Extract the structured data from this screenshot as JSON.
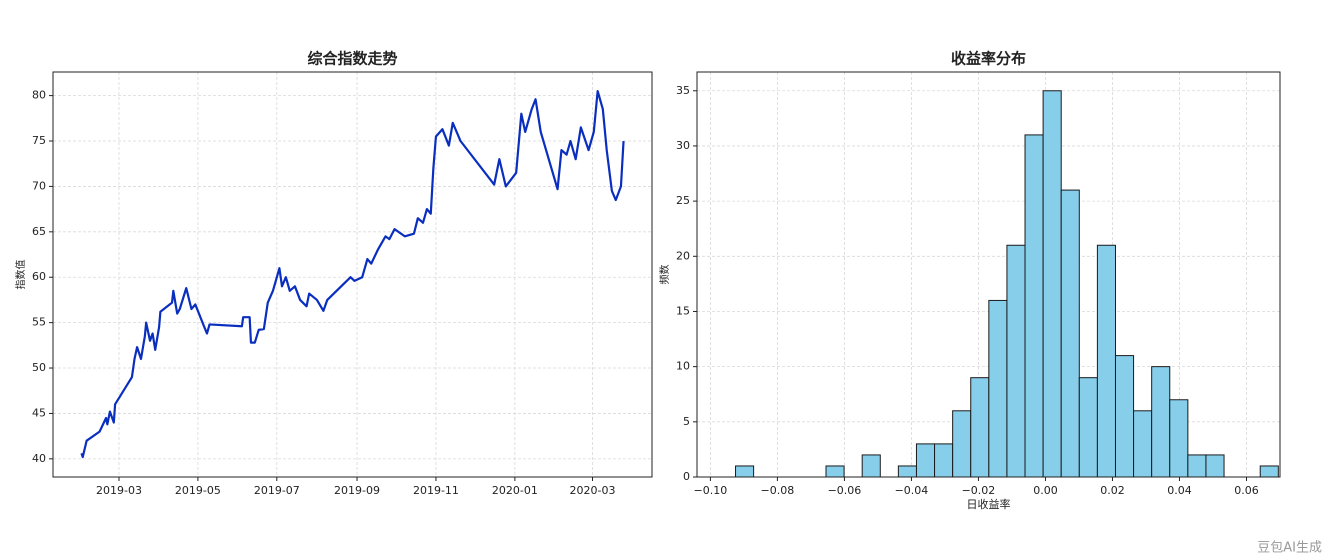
{
  "chart_data": [
    {
      "type": "line",
      "title": "综合指数走势",
      "ylabel": "指数值",
      "color": "#0a2fbf",
      "grid": true,
      "xlim": [
        "2019-01-09",
        "2020-04-16"
      ],
      "ylim": [
        38.0,
        82.6
      ],
      "xticks": [
        {
          "value": "2019-03-01",
          "label": "2019-03"
        },
        {
          "value": "2019-05-01",
          "label": "2019-05"
        },
        {
          "value": "2019-07-01",
          "label": "2019-07"
        },
        {
          "value": "2019-09-01",
          "label": "2019-09"
        },
        {
          "value": "2019-11-01",
          "label": "2019-11"
        },
        {
          "value": "2020-01-01",
          "label": "2020-01"
        },
        {
          "value": "2020-03-01",
          "label": "2020-03"
        }
      ],
      "yticks": [
        40,
        45,
        50,
        55,
        60,
        65,
        70,
        75,
        80
      ],
      "x": [
        "2019-01-31",
        "2019-02-01",
        "2019-02-04",
        "2019-02-14",
        "2019-02-19",
        "2019-02-20",
        "2019-02-22",
        "2019-02-25",
        "2019-02-26",
        "2019-03-11",
        "2019-03-13",
        "2019-03-15",
        "2019-03-18",
        "2019-03-21",
        "2019-03-22",
        "2019-03-25",
        "2019-03-27",
        "2019-03-29",
        "2019-04-01",
        "2019-04-02",
        "2019-04-11",
        "2019-04-12",
        "2019-04-15",
        "2019-04-17",
        "2019-04-22",
        "2019-04-26",
        "2019-04-29",
        "2019-05-06",
        "2019-05-08",
        "2019-05-10",
        "2019-06-04",
        "2019-06-05",
        "2019-06-10",
        "2019-06-11",
        "2019-06-14",
        "2019-06-17",
        "2019-06-21",
        "2019-06-24",
        "2019-06-28",
        "2019-07-03",
        "2019-07-05",
        "2019-07-08",
        "2019-07-11",
        "2019-07-15",
        "2019-07-19",
        "2019-07-24",
        "2019-07-26",
        "2019-08-01",
        "2019-08-06",
        "2019-08-09",
        "2019-08-27",
        "2019-08-30",
        "2019-09-05",
        "2019-09-09",
        "2019-09-12",
        "2019-09-17",
        "2019-09-23",
        "2019-09-26",
        "2019-09-30",
        "2019-10-08",
        "2019-10-15",
        "2019-10-18",
        "2019-10-22",
        "2019-10-25",
        "2019-10-28",
        "2019-10-30",
        "2019-11-01",
        "2019-11-06",
        "2019-11-11",
        "2019-11-14",
        "2019-11-20",
        "2019-12-16",
        "2019-12-20",
        "2019-12-25",
        "2020-01-02",
        "2020-01-06",
        "2020-01-09",
        "2020-01-14",
        "2020-01-17",
        "2020-01-21",
        "2020-02-03",
        "2020-02-06",
        "2020-02-10",
        "2020-02-13",
        "2020-02-17",
        "2020-02-21",
        "2020-02-27",
        "2020-03-02",
        "2020-03-05",
        "2020-03-09",
        "2020-03-12",
        "2020-03-16",
        "2020-03-19",
        "2020-03-23",
        "2020-03-25"
      ],
      "values": [
        40.6,
        40.2,
        42.0,
        43.0,
        44.5,
        43.8,
        45.2,
        44.0,
        46.0,
        49.0,
        51.0,
        52.3,
        51.0,
        53.5,
        55.0,
        53.0,
        53.8,
        52.0,
        54.5,
        56.2,
        57.2,
        58.5,
        56.0,
        56.5,
        58.8,
        56.5,
        57.0,
        54.5,
        53.8,
        54.8,
        54.6,
        55.6,
        55.6,
        52.8,
        52.8,
        54.2,
        54.3,
        57.2,
        58.5,
        61.0,
        59.0,
        60.0,
        58.5,
        59.0,
        57.5,
        56.8,
        58.2,
        57.5,
        56.3,
        57.5,
        60.0,
        59.6,
        60.0,
        62.0,
        61.5,
        63.0,
        64.5,
        64.2,
        65.3,
        64.5,
        64.8,
        66.5,
        66.0,
        67.5,
        67.0,
        72.0,
        75.5,
        76.3,
        74.5,
        77.0,
        75.0,
        70.2,
        73.0,
        70.0,
        71.5,
        78.0,
        76.0,
        78.5,
        79.6,
        76.0,
        69.7,
        74.0,
        73.5,
        75.0,
        73.0,
        76.5,
        74.0,
        76.0,
        80.5,
        78.5,
        74.0,
        69.5,
        68.5,
        70.0,
        75.0
      ]
    },
    {
      "type": "histogram",
      "title": "收益率分布",
      "xlabel": "日收益率",
      "ylabel": "频数",
      "color": "#87ceeb",
      "edgecolor": "#1a1a1a",
      "grid": true,
      "xlim": [
        -0.104,
        0.07
      ],
      "ylim": [
        0,
        36.7
      ],
      "xticks": [
        {
          "value": -0.1,
          "label": "−0.10"
        },
        {
          "value": -0.08,
          "label": "−0.08"
        },
        {
          "value": -0.06,
          "label": "−0.06"
        },
        {
          "value": -0.04,
          "label": "−0.04"
        },
        {
          "value": -0.02,
          "label": "−0.02"
        },
        {
          "value": 0,
          "label": "0.00"
        },
        0.02,
        0.04,
        0.06
      ],
      "yticks": [
        0,
        5,
        10,
        15,
        20,
        25,
        30,
        35
      ],
      "bins": [
        -0.0925,
        -0.0871,
        -0.0817,
        -0.0763,
        -0.0709,
        -0.0655,
        -0.0601,
        -0.0547,
        -0.0493,
        -0.0439,
        -0.0385,
        -0.0331,
        -0.0277,
        -0.0223,
        -0.0169,
        -0.0115,
        -0.0061,
        -0.0007,
        0.0047,
        0.0101,
        0.0155,
        0.0209,
        0.0263,
        0.0317,
        0.0371,
        0.0425,
        0.0479,
        0.0533,
        0.0587,
        0.0641,
        0.0695
      ],
      "values": [
        1,
        0,
        0,
        0,
        0,
        1,
        0,
        2,
        0,
        1,
        3,
        3,
        6,
        9,
        16,
        21,
        31,
        35,
        26,
        9,
        21,
        11,
        6,
        10,
        7,
        2,
        2,
        0,
        0,
        1
      ]
    }
  ],
  "watermark": "豆包AI生成"
}
